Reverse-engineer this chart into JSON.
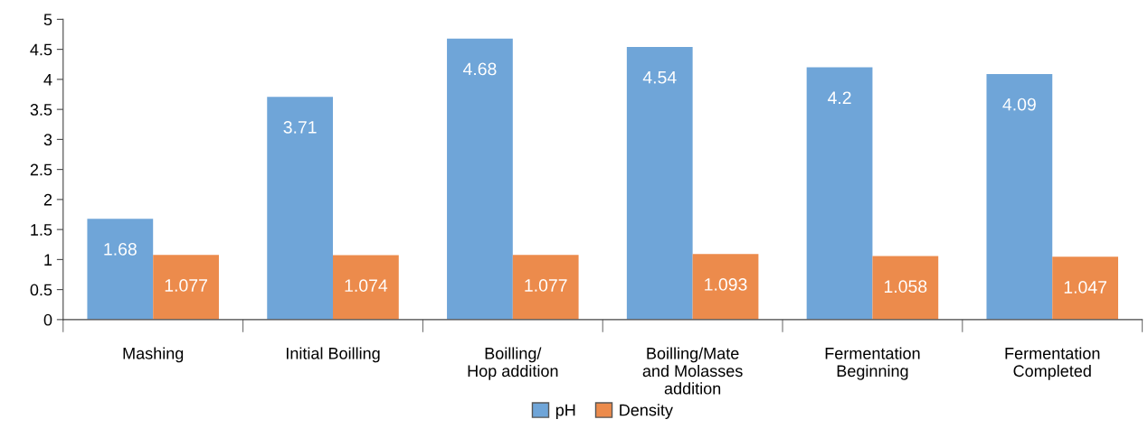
{
  "chart_data": {
    "type": "bar",
    "categories": [
      "Mashing",
      "Initial Boilling",
      "Boilling/\nHop addition",
      "Boilling/Mate\nand Molasses\naddition",
      "Fermentation\nBeginning",
      "Fermentation\nCompleted"
    ],
    "series": [
      {
        "name": "pH",
        "color": "#6fa5d8",
        "values": [
          1.68,
          3.71,
          4.68,
          4.54,
          4.2,
          4.09
        ]
      },
      {
        "name": "Density",
        "color": "#ec8b4c",
        "values": [
          1.077,
          1.074,
          1.077,
          1.093,
          1.058,
          1.047
        ]
      }
    ],
    "ylim": [
      0,
      5
    ],
    "yticks": [
      0,
      0.5,
      1,
      1.5,
      2,
      2.5,
      3,
      3.5,
      4,
      4.5,
      5
    ],
    "grid": false,
    "legend": "bottom",
    "data_labels": true
  }
}
